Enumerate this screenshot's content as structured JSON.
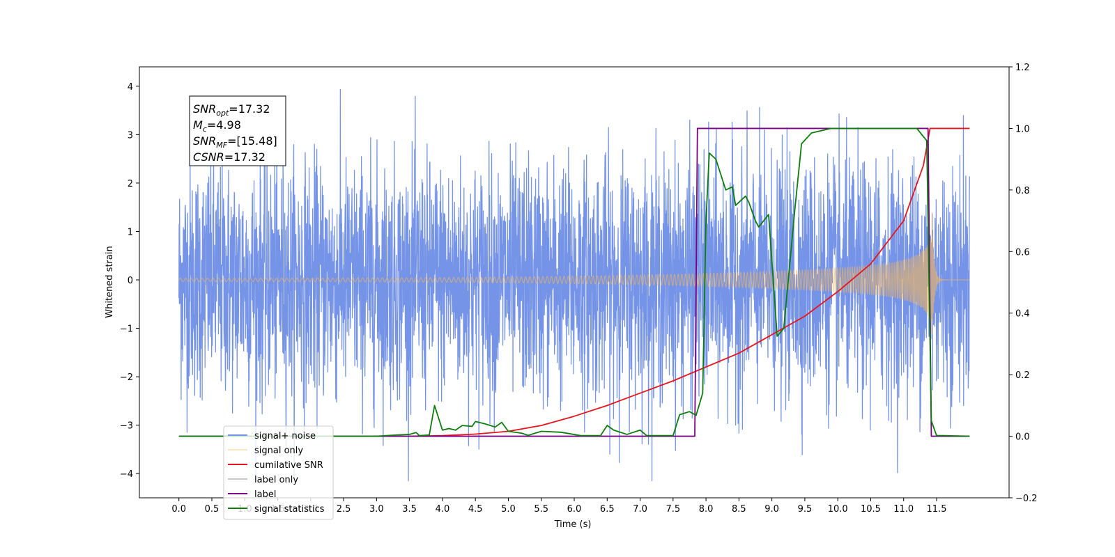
{
  "chart_data": {
    "type": "line",
    "xlabel": "Time (s)",
    "ylabel": "Whitened strain",
    "xlim": [
      -0.6,
      12.6
    ],
    "ylim": [
      -4.5,
      4.4
    ],
    "y2lim": [
      -0.2,
      1.2
    ],
    "x_ticks": [
      "0.0",
      "0.5",
      "1.0",
      "1.5",
      "2.0",
      "2.5",
      "3.0",
      "3.5",
      "4.0",
      "4.5",
      "5.0",
      "5.5",
      "6.0",
      "6.5",
      "7.0",
      "7.5",
      "8.0",
      "8.5",
      "9.0",
      "9.5",
      "10.0",
      "10.5",
      "11.0",
      "11.5"
    ],
    "y_ticks": [
      "4",
      "3",
      "2",
      "1",
      "0",
      "−1",
      "−2",
      "−3",
      "−4"
    ],
    "y2_ticks": [
      "1.2",
      "1.0",
      "0.8",
      "0.6",
      "0.4",
      "0.2",
      "0.0",
      "−0.2"
    ],
    "annotation": [
      {
        "name": "SNR",
        "sub": "opt",
        "value": "=17.32"
      },
      {
        "name": "M",
        "sub": "c",
        "value": "=4.98"
      },
      {
        "name": "SNR",
        "sub": "MF",
        "value": "=[15.48]"
      },
      {
        "name": "CSNR",
        "sub": "",
        "value": "=17.32"
      }
    ],
    "legend_position": "lower-left",
    "series": [
      {
        "name": "signal+ noise",
        "color": "#6f8ee6",
        "axis": "left",
        "kind": "noise",
        "x_range": [
          0,
          12.0
        ],
        "std": 1.2
      },
      {
        "name": "signal only",
        "color": "#ffb84d",
        "axis": "left",
        "kind": "chirp",
        "x_range": [
          0,
          12.0
        ],
        "merger_time": 11.43,
        "peak_amplitude": 1.4
      },
      {
        "name": "cumilative SNR",
        "color": "#e8141c",
        "axis": "right",
        "points": [
          [
            3.5,
            0
          ],
          [
            4.0,
            0.002
          ],
          [
            4.5,
            0.007
          ],
          [
            5.0,
            0.016
          ],
          [
            5.5,
            0.035
          ],
          [
            6.0,
            0.065
          ],
          [
            6.5,
            0.1
          ],
          [
            7.0,
            0.14
          ],
          [
            7.5,
            0.18
          ],
          [
            8.0,
            0.225
          ],
          [
            8.5,
            0.27
          ],
          [
            9.0,
            0.33
          ],
          [
            9.5,
            0.39
          ],
          [
            10.0,
            0.47
          ],
          [
            10.5,
            0.56
          ],
          [
            11.0,
            0.7
          ],
          [
            11.3,
            0.88
          ],
          [
            11.4,
            1.0
          ],
          [
            12.0,
            1.0
          ]
        ]
      },
      {
        "name": "label only",
        "color": "#c8c8c8",
        "axis": "right",
        "hidden_line": true,
        "points": []
      },
      {
        "name": "label",
        "color": "#7b0085",
        "axis": "right",
        "points": [
          [
            0,
            0
          ],
          [
            7.83,
            0
          ],
          [
            7.87,
            1.0
          ],
          [
            11.37,
            1.0
          ],
          [
            11.42,
            0
          ],
          [
            12.0,
            0
          ]
        ]
      },
      {
        "name": "signal statistics",
        "color": "#0c7d0c",
        "axis": "right",
        "points": [
          [
            0,
            0
          ],
          [
            3.0,
            0
          ],
          [
            3.3,
            0.004
          ],
          [
            3.5,
            0.006
          ],
          [
            3.6,
            0.012
          ],
          [
            3.65,
            0.002
          ],
          [
            3.8,
            0.004
          ],
          [
            3.88,
            0.1
          ],
          [
            4.0,
            0.02
          ],
          [
            4.1,
            0.025
          ],
          [
            4.2,
            0.02
          ],
          [
            4.3,
            0.035
          ],
          [
            4.45,
            0.032
          ],
          [
            4.5,
            0.048
          ],
          [
            4.65,
            0.04
          ],
          [
            4.8,
            0.03
          ],
          [
            4.9,
            0.045
          ],
          [
            5.0,
            0.016
          ],
          [
            5.2,
            0.01
          ],
          [
            5.3,
            0.003
          ],
          [
            5.5,
            0.016
          ],
          [
            5.8,
            0.013
          ],
          [
            6.1,
            0.002
          ],
          [
            6.4,
            0.002
          ],
          [
            6.5,
            0.035
          ],
          [
            6.6,
            0.02
          ],
          [
            6.8,
            0.006
          ],
          [
            7.0,
            0.02
          ],
          [
            7.1,
            0.002
          ],
          [
            7.5,
            0.002
          ],
          [
            7.6,
            0.07
          ],
          [
            7.75,
            0.08
          ],
          [
            7.85,
            0.068
          ],
          [
            7.95,
            0.14
          ],
          [
            8.0,
            0.7
          ],
          [
            8.05,
            0.92
          ],
          [
            8.15,
            0.9
          ],
          [
            8.3,
            0.8
          ],
          [
            8.4,
            0.81
          ],
          [
            8.45,
            0.75
          ],
          [
            8.6,
            0.78
          ],
          [
            8.65,
            0.76
          ],
          [
            8.75,
            0.7
          ],
          [
            8.8,
            0.68
          ],
          [
            8.95,
            0.72
          ],
          [
            9.08,
            0.325
          ],
          [
            9.18,
            0.35
          ],
          [
            9.35,
            0.74
          ],
          [
            9.45,
            0.95
          ],
          [
            9.6,
            0.985
          ],
          [
            9.9,
            1.0
          ],
          [
            11.2,
            1.0
          ],
          [
            11.35,
            0.96
          ],
          [
            11.42,
            0.05
          ],
          [
            11.5,
            0.002
          ],
          [
            11.6,
            0.002
          ],
          [
            12.0,
            0
          ]
        ]
      }
    ]
  }
}
